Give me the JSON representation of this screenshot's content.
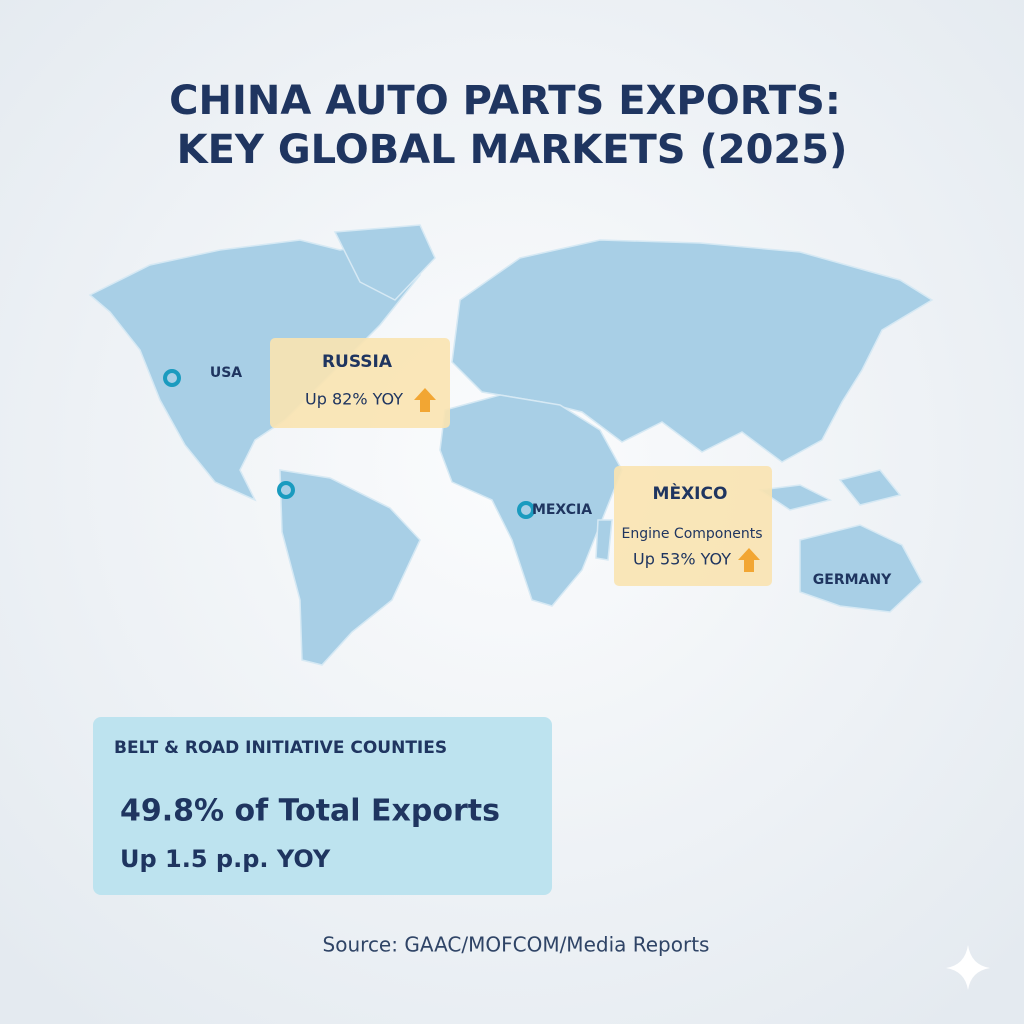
{
  "title": {
    "lines": [
      "CHINA AUTO PARTS EXPORTS:",
      "KEY GLOBAL MARKETS (2025)"
    ]
  },
  "map": {
    "labels": [
      "USA",
      "MEXCIA",
      "GERMANY"
    ]
  },
  "callouts": [
    {
      "title": "RUSSIA",
      "lines": [
        "Up 82% YOY"
      ]
    },
    {
      "title": "MÈXICO",
      "lines": [
        "Engine Components",
        "Up 53% YOY"
      ]
    }
  ],
  "panel": {
    "heading": "BELT & ROAD INITIATIVE COUNTIES",
    "headline": "49.8% of Total Exports",
    "subline": "Up 1.5 p.p. YOY"
  },
  "source": "Source: GAAC/MOFCOM/Media Reports"
}
